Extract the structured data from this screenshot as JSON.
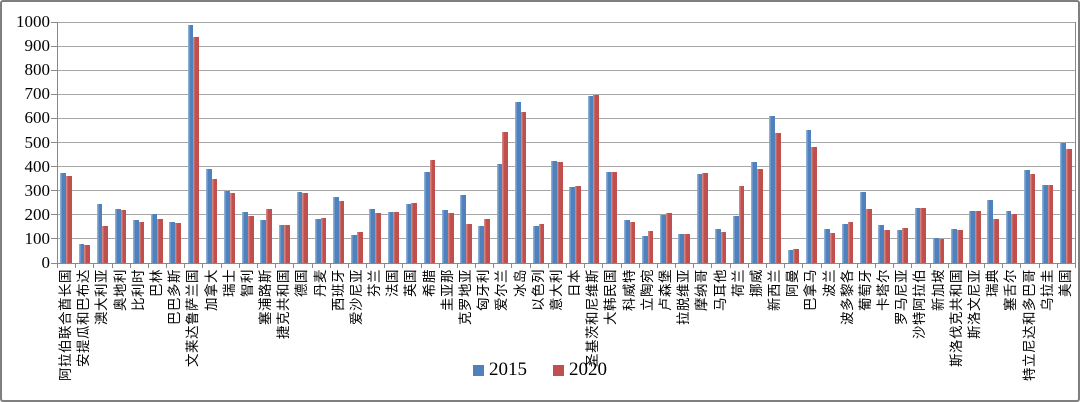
{
  "chart_data": {
    "type": "bar",
    "title": "",
    "xlabel": "",
    "ylabel": "",
    "ylim": [
      0,
      1000
    ],
    "yticks": [
      "0",
      "100",
      "200",
      "300",
      "400",
      "500",
      "600",
      "700",
      "800",
      "900",
      "1000"
    ],
    "grid": true,
    "legend_position": "bottom",
    "categories": [
      "阿拉伯联合酋长国",
      "安提瓜和巴布达",
      "澳大利亚",
      "奥地利",
      "比利时",
      "巴林",
      "巴巴多斯",
      "文莱达鲁萨兰国",
      "加拿大",
      "瑞士",
      "智利",
      "塞浦路斯",
      "捷克共和国",
      "德国",
      "丹麦",
      "西班牙",
      "爱沙尼亚",
      "芬兰",
      "法国",
      "英国",
      "希腊",
      "圭亚那",
      "克罗地亚",
      "匈牙利",
      "爱尔兰",
      "冰岛",
      "以色列",
      "意大利",
      "日本",
      "圣基茨和尼维斯",
      "大韩民国",
      "科威特",
      "立陶宛",
      "卢森堡",
      "拉脱维亚",
      "摩纳哥",
      "马耳他",
      "荷兰",
      "挪威",
      "新西兰",
      "阿曼",
      "巴拿马",
      "波兰",
      "波多黎各",
      "葡萄牙",
      "卡塔尔",
      "罗马尼亚",
      "沙特阿拉伯",
      "新加坡",
      "斯洛伐克共和国",
      "斯洛文尼亚",
      "瑞典",
      "塞舌尔",
      "特立尼达和多巴哥",
      "乌拉圭",
      "美国"
    ],
    "series": [
      {
        "name": "2015",
        "color": "#4F81BD",
        "values": [
          375,
          80,
          243,
          224,
          178,
          205,
          170,
          987,
          388,
          297,
          211,
          177,
          158,
          296,
          182,
          273,
          117,
          225,
          212,
          245,
          376,
          219,
          282,
          153,
          412,
          666,
          155,
          424,
          315,
          691,
          378,
          177,
          114,
          199,
          122,
          371,
          141,
          194,
          419,
          610,
          52,
          552,
          140,
          160,
          294,
          156,
          135,
          228,
          105,
          142,
          214,
          260,
          216,
          385,
          323,
          496
        ]
      },
      {
        "name": "2020",
        "color": "#C0504D",
        "values": [
          362,
          74,
          152,
          219,
          170,
          182,
          166,
          937,
          348,
          291,
          195,
          222,
          157,
          291,
          186,
          259,
          128,
          208,
          212,
          251,
          427,
          209,
          161,
          181,
          542,
          625,
          161,
          419,
          321,
          696,
          377,
          169,
          131,
          206,
          121,
          372,
          127,
          318,
          388,
          541,
          60,
          483,
          124,
          171,
          225,
          139,
          145,
          228,
          100,
          138,
          217,
          181,
          202,
          371,
          325,
          471
        ]
      }
    ],
    "colors": {
      "gridline": "#a6a6a6",
      "axis": "#898989",
      "frame_border": "#7f7f7f",
      "background": "#ffffff"
    }
  }
}
